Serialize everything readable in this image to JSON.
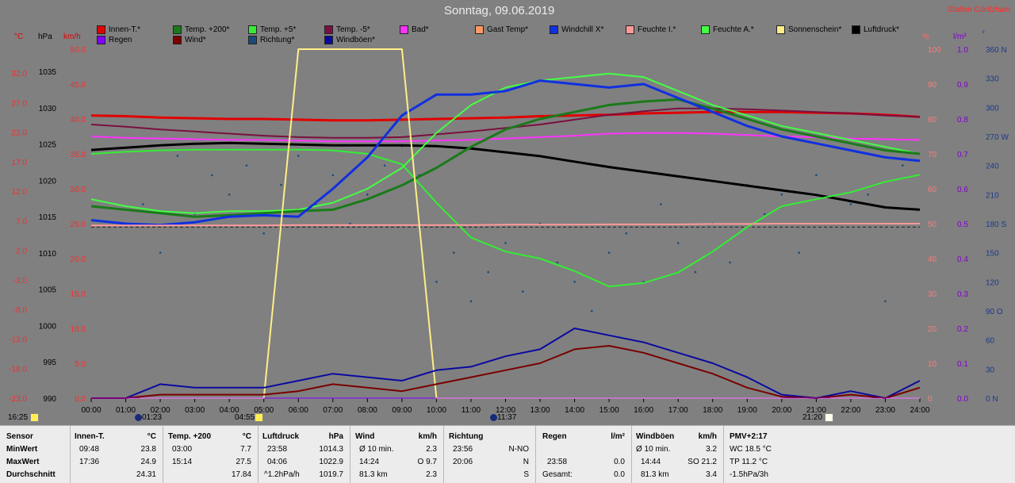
{
  "title": "Sonntag, 09.06.2019",
  "station": "Station Göritzhain",
  "legend": [
    {
      "label": "Innen-T.*",
      "color": "#e10000"
    },
    {
      "label": "Temp. +200*",
      "color": "#1a7a1a"
    },
    {
      "label": "Temp. +5*",
      "color": "#33ee33"
    },
    {
      "label": "Temp. -5*",
      "color": "#7a1040"
    },
    {
      "label": "Bad*",
      "color": "#ff33ff"
    },
    {
      "label": "Gast Temp*",
      "color": "#ff9966"
    },
    {
      "label": "Windchill X*",
      "color": "#1030e0"
    },
    {
      "label": "Feuchte I.*",
      "color": "#ff9999"
    },
    {
      "label": "Feuchte A.*",
      "color": "#44ff44"
    },
    {
      "label": "Sonnenschein*",
      "color": "#ffee88"
    },
    {
      "label": "Luftdruck*",
      "color": "#000000"
    },
    {
      "label": "Regen",
      "color": "#8000ff"
    },
    {
      "label": "Wind*",
      "color": "#7a0000"
    },
    {
      "label": "Richtung*",
      "color": "#1a4a7a"
    },
    {
      "label": "Windböen*",
      "color": "#0a0aa0"
    }
  ],
  "units": {
    "celsius": "°C",
    "hpa": "hPa",
    "kmh": "km/h",
    "percent": "%",
    "lm2": "l/m²",
    "deg": "°"
  },
  "axes": {
    "temp": [
      "32.0",
      "27.0",
      "22.0",
      "17.0",
      "12.0",
      "7.0",
      "2.0",
      "-3.0",
      "-8.0",
      "-13.0",
      "-18.0",
      "-23.0"
    ],
    "hpa": [
      "1035",
      "1030",
      "1025",
      "1020",
      "1015",
      "1010",
      "1005",
      "1000",
      "995",
      "990"
    ],
    "kmh": [
      "50.0",
      "45.0",
      "40.0",
      "35.0",
      "30.0",
      "25.0",
      "20.0",
      "15.0",
      "10.0",
      "5.0",
      "0.0"
    ],
    "percent": [
      "100",
      "90",
      "80",
      "70",
      "60",
      "50",
      "40",
      "30",
      "20",
      "10",
      "0"
    ],
    "rain": [
      "1.0",
      "0.9",
      "0.8",
      "0.7",
      "0.6",
      "0.5",
      "0.4",
      "0.3",
      "0.2",
      "0.1",
      "0.0"
    ],
    "dir": [
      "360 N",
      "330",
      "300",
      "270 W",
      "240",
      "210",
      "180 S",
      "150",
      "120",
      "90 O",
      "60",
      "30",
      "0 N"
    ],
    "time": [
      "00:00",
      "01:00",
      "02:00",
      "03:00",
      "04:00",
      "05:00",
      "06:00",
      "07:00",
      "08:00",
      "09:00",
      "10:00",
      "11:00",
      "12:00",
      "13:00",
      "14:00",
      "15:00",
      "16:00",
      "17:00",
      "18:00",
      "19:00",
      "20:00",
      "21:00",
      "22:00",
      "23:00",
      "24:00"
    ]
  },
  "markers": [
    {
      "label": "16:25",
      "color": "#ffee55"
    },
    {
      "label": "01:23",
      "color": "#1a2a7a"
    },
    {
      "label": "04:55",
      "color": "#ffee55"
    },
    {
      "label": "11:37",
      "color": "#1a2a7a"
    },
    {
      "label": "21:20",
      "color": "#ffffee"
    }
  ],
  "chart_data": {
    "type": "line",
    "xlabel": "",
    "x_range": [
      "00:00",
      "24:00"
    ],
    "y_axes": {
      "temp_celsius": [
        -23,
        32
      ],
      "pressure_hpa": [
        990,
        1035
      ],
      "speed_kmh": [
        0,
        50
      ],
      "humidity_percent": [
        0,
        100
      ],
      "rain_lm2": [
        0,
        1
      ],
      "direction_deg": [
        0,
        360
      ]
    },
    "x": [
      0,
      1,
      2,
      3,
      4,
      5,
      6,
      7,
      8,
      9,
      10,
      11,
      12,
      13,
      14,
      15,
      16,
      17,
      18,
      19,
      20,
      21,
      22,
      23,
      24
    ],
    "series": [
      {
        "name": "Innen-T.*",
        "color": "#e10000",
        "unit": "kmh",
        "values": [
          40.5,
          40.4,
          40.2,
          40.1,
          40.0,
          40.0,
          39.9,
          39.8,
          39.8,
          39.9,
          40.0,
          40.1,
          40.2,
          40.4,
          40.5,
          40.6,
          40.8,
          40.9,
          41.0,
          41.0,
          41.0,
          40.9,
          40.8,
          40.6,
          40.3
        ]
      },
      {
        "name": "Temp. -5*",
        "color": "#7a1040",
        "unit": "kmh",
        "values": [
          39.2,
          38.9,
          38.5,
          38.2,
          37.9,
          37.6,
          37.4,
          37.3,
          37.3,
          37.4,
          37.8,
          38.2,
          38.7,
          39.2,
          39.9,
          40.6,
          41.1,
          41.5,
          41.5,
          41.4,
          41.2,
          41.0,
          40.8,
          40.5,
          40.3
        ]
      },
      {
        "name": "Bad*",
        "color": "#ff33ff",
        "unit": "kmh",
        "values": [
          37.5,
          37.3,
          37.2,
          37.1,
          37.0,
          37.0,
          36.9,
          36.8,
          36.8,
          36.8,
          36.9,
          37.0,
          37.2,
          37.4,
          37.6,
          37.9,
          38.0,
          38.0,
          37.9,
          37.7,
          37.5,
          37.4,
          37.2,
          37.1,
          37.0
        ]
      },
      {
        "name": "Luftdruck*",
        "color": "#000000",
        "unit": "hpa",
        "values": [
          1022.0,
          1022.3,
          1022.6,
          1022.8,
          1022.9,
          1022.8,
          1022.7,
          1022.6,
          1022.6,
          1022.6,
          1022.5,
          1022.2,
          1021.7,
          1021.2,
          1020.5,
          1019.8,
          1019.2,
          1018.6,
          1018.0,
          1017.4,
          1016.8,
          1016.2,
          1015.4,
          1014.6,
          1014.3
        ]
      },
      {
        "name": "Temp. +5*",
        "color": "#33ee33",
        "unit": "kmh",
        "values": [
          35.0,
          35.3,
          35.5,
          35.6,
          35.6,
          35.6,
          35.6,
          35.5,
          35.0,
          33.5,
          28.0,
          23.0,
          21.0,
          20.0,
          18.2,
          16.0,
          16.5,
          18.0,
          21.0,
          24.5,
          27.5,
          28.5,
          29.5,
          31.0,
          32.0
        ]
      },
      {
        "name": "Feuchte A.*",
        "color": "#44ff44",
        "unit": "kmh",
        "values": [
          28.5,
          27.5,
          26.8,
          26.5,
          26.8,
          26.8,
          27.0,
          28.0,
          30.0,
          33.0,
          38.0,
          42.0,
          44.5,
          45.5,
          46.0,
          46.5,
          46.0,
          44.0,
          42.0,
          40.5,
          39.0,
          38.0,
          37.0,
          36.0,
          35.0
        ]
      },
      {
        "name": "Temp. +200*",
        "color": "#1a7a1a",
        "unit": "kmh",
        "values": [
          27.5,
          27.0,
          26.5,
          26.0,
          26.2,
          26.5,
          26.8,
          27.0,
          28.5,
          30.5,
          33.0,
          36.0,
          38.5,
          40.0,
          41.0,
          42.0,
          42.5,
          42.8,
          41.5,
          40.0,
          38.5,
          37.5,
          36.5,
          35.5,
          35.0
        ]
      },
      {
        "name": "Windchill X*",
        "color": "#1030e0",
        "unit": "kmh",
        "values": [
          25.5,
          25.0,
          24.8,
          25.2,
          26.0,
          26.2,
          26.0,
          30.0,
          34.5,
          40.5,
          43.5,
          43.5,
          44.0,
          45.5,
          45.0,
          44.5,
          45.0,
          43.0,
          41.0,
          39.0,
          37.5,
          36.5,
          35.5,
          34.5,
          34.0
        ]
      },
      {
        "name": "Feuchte I.*",
        "color": "#ff9999",
        "unit": "percent",
        "values": [
          49.5,
          49.5,
          49.5,
          49.5,
          49.5,
          49.5,
          49.6,
          49.6,
          49.6,
          49.6,
          49.6,
          49.6,
          49.7,
          49.7,
          49.7,
          49.8,
          49.8,
          49.8,
          49.9,
          49.9,
          50.0,
          50.0,
          50.0,
          50.0,
          50.0
        ]
      },
      {
        "name": "Sonnenschein*",
        "color": "#ffee88",
        "unit": "kmh",
        "values": [
          0,
          0,
          0,
          0,
          0,
          0,
          50,
          50,
          50,
          50,
          0,
          0,
          0,
          0,
          0,
          0,
          0,
          0,
          0,
          0,
          0,
          0,
          0,
          0,
          0
        ]
      },
      {
        "name": "Windböen*",
        "color": "#0a0aa0",
        "unit": "kmh",
        "values": [
          0,
          0,
          2.0,
          1.5,
          1.5,
          1.5,
          2.5,
          3.5,
          3.0,
          2.5,
          4.0,
          4.5,
          6.0,
          7.0,
          10.0,
          9.0,
          8.0,
          6.5,
          5.0,
          3.0,
          0.5,
          0,
          1.0,
          0,
          2.5
        ]
      },
      {
        "name": "Wind*",
        "color": "#7a0000",
        "unit": "kmh",
        "values": [
          0,
          0,
          0.5,
          0.5,
          0.5,
          0.5,
          1.0,
          2.0,
          1.5,
          1.0,
          2.0,
          3.0,
          4.0,
          5.0,
          7.0,
          7.5,
          6.5,
          5.0,
          3.5,
          1.5,
          0.2,
          0,
          0.5,
          0,
          1.5
        ]
      },
      {
        "name": "Regen",
        "color": "#8000ff",
        "unit": "kmh",
        "values": [
          0,
          0,
          0,
          0,
          0,
          0,
          0,
          0,
          0,
          0,
          0,
          0,
          0,
          0,
          0,
          0,
          0,
          0,
          0,
          0,
          0,
          0,
          0,
          0,
          0
        ]
      }
    ],
    "direction_scatter": {
      "name": "Richtung*",
      "color": "#1a4a7a",
      "x": [
        1.0,
        1.5,
        2.0,
        2.5,
        3.0,
        3.5,
        4.0,
        4.5,
        5.0,
        5.5,
        6.0,
        6.5,
        7.0,
        7.5,
        8.0,
        8.5,
        9.0,
        9.5,
        10.0,
        10.5,
        11.0,
        11.5,
        12.0,
        12.5,
        13.0,
        13.5,
        14.0,
        14.5,
        15.0,
        15.5,
        16.0,
        16.5,
        17.0,
        17.5,
        18.0,
        18.5,
        19.0,
        19.5,
        20.0,
        20.5,
        21.0,
        21.5,
        22.0,
        22.5,
        23.0,
        23.5
      ],
      "y": [
        180,
        200,
        150,
        250,
        190,
        230,
        210,
        240,
        170,
        220,
        250,
        200,
        230,
        180,
        210,
        240,
        260,
        230,
        120,
        150,
        100,
        130,
        160,
        110,
        180,
        140,
        120,
        90,
        150,
        170,
        120,
        200,
        160,
        130,
        180,
        140,
        220,
        190,
        210,
        150,
        230,
        180,
        200,
        210,
        100,
        240
      ]
    }
  },
  "stats": {
    "sensor": {
      "header": "Sensor",
      "rows": [
        "MinWert",
        "MaxWert",
        "Durchschnitt"
      ]
    },
    "innen": {
      "header": "Innen-T.",
      "unit": "°C",
      "rows": [
        [
          "09:48",
          "23.8"
        ],
        [
          "17:36",
          "24.9"
        ],
        [
          "",
          "24.31"
        ]
      ]
    },
    "temp200": {
      "header": "Temp. +200",
      "unit": "°C",
      "rows": [
        [
          "03:00",
          "7.7"
        ],
        [
          "15:14",
          "27.5"
        ],
        [
          "",
          "17.84"
        ]
      ]
    },
    "luftdruck": {
      "header": "Luftdruck",
      "unit": "hPa",
      "rows": [
        [
          "23:58",
          "1014.3"
        ],
        [
          "04:06",
          "1022.9"
        ],
        [
          "^1.2hPa/h",
          "1019.7"
        ]
      ]
    },
    "wind": {
      "header": "Wind",
      "unit": "km/h",
      "rows": [
        [
          "Ø 10 min.",
          "2.3"
        ],
        [
          "14:24",
          "O 9.7"
        ],
        [
          "81.3 km",
          "2.3"
        ]
      ]
    },
    "richtung": {
      "header": "Richtung",
      "unit": "",
      "rows": [
        [
          "23:56",
          "N-NO"
        ],
        [
          "20:06",
          "N"
        ],
        [
          "",
          "S"
        ]
      ]
    },
    "regen": {
      "header": "Regen",
      "unit": "l/m²",
      "rows": [
        [
          "",
          ""
        ],
        [
          "23:58",
          "0.0"
        ],
        [
          "Gesamt:",
          "0.0"
        ]
      ]
    },
    "windboeen": {
      "header": "Windböen",
      "unit": "km/h",
      "rows": [
        [
          "Ø 10 min.",
          "3.2"
        ],
        [
          "14:44",
          "SO 21.2"
        ],
        [
          "81.3 km",
          "3.4"
        ]
      ]
    },
    "pmv": {
      "header": "PMV+2:17",
      "rows": [
        "WC 18.5 °C",
        "TP 11.2 °C",
        "-1.5hPa/3h"
      ]
    }
  }
}
